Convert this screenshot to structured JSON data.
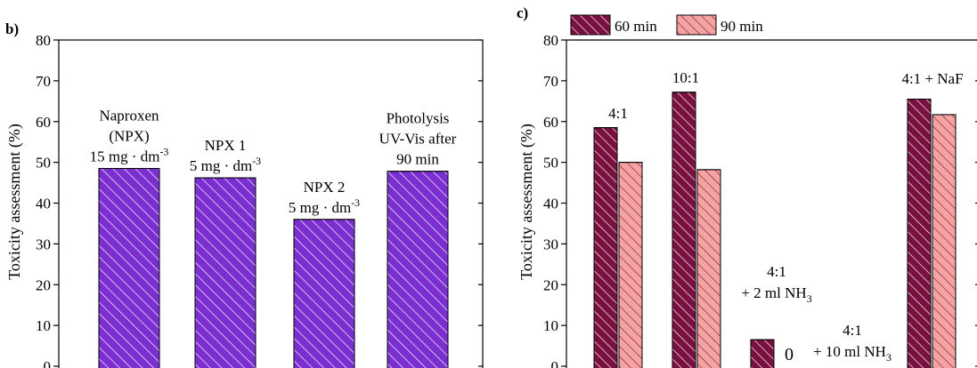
{
  "chart_data": [
    {
      "panel_label": "b)",
      "type": "bar",
      "ylabel": "Toxicity assessment (%)",
      "ylim": [
        0,
        80
      ],
      "yticks": [
        0,
        10,
        20,
        30,
        40,
        50,
        60,
        70,
        80
      ],
      "categories": [
        "Naproxen (NPX)",
        "NPX 1",
        "NPX 2",
        "Photolysis UV-Vis after 90 min"
      ],
      "values": [
        48.5,
        46.2,
        36.0,
        47.8
      ],
      "bar_labels": [
        [
          "Naproxen",
          "(NPX)",
          "15 mg · dm-3"
        ],
        [
          "NPX 1",
          "5 mg · dm-3"
        ],
        [
          "NPX 2",
          "5 mg · dm-3"
        ],
        [
          "Photolysis",
          "UV-Vis after",
          "90 min"
        ]
      ],
      "bar_color": "#7b2fd0",
      "hatch": "diagonal-white"
    },
    {
      "panel_label": "c)",
      "type": "bar",
      "ylabel": "Toxicity assessment (%)",
      "ylim": [
        0,
        80
      ],
      "yticks": [
        0,
        10,
        20,
        30,
        40,
        50,
        60,
        70,
        80
      ],
      "legend_position": "top-left",
      "categories": [
        "4:1",
        "10:1",
        "4:1 + 2 ml NH3",
        "4:1 + 10 ml NH3",
        "4:1 + NaF"
      ],
      "group_labels": [
        [
          "4:1"
        ],
        [
          "10:1"
        ],
        [
          "4:1",
          "+ 2 ml NH3"
        ],
        [
          "4:1",
          "+ 10 ml NH3"
        ],
        [
          "4:1 + NaF"
        ]
      ],
      "zero_label": "0",
      "series": [
        {
          "name": "60 min",
          "values": [
            58.5,
            67.2,
            6.5,
            0,
            65.5
          ],
          "color": "#7a1040"
        },
        {
          "name": "90 min",
          "values": [
            50.0,
            48.2,
            0,
            0,
            61.7
          ],
          "color": "#f5a3a0"
        }
      ]
    }
  ]
}
